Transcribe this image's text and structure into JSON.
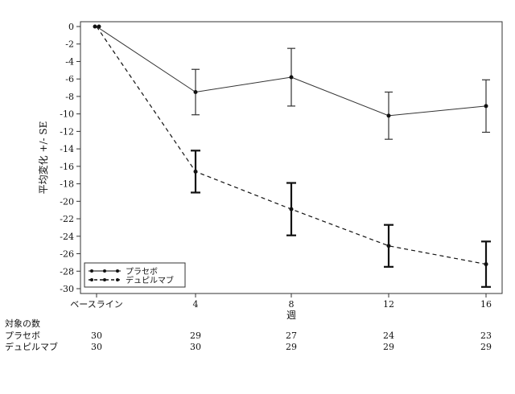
{
  "chart_data": {
    "type": "line",
    "ylabel": "平均変化 +/- SE",
    "xlabel": "週",
    "x": [
      "ベースライン",
      "4",
      "8",
      "12",
      "16"
    ],
    "ylim": [
      -30,
      0
    ],
    "yticks": [
      0,
      -2,
      -4,
      -6,
      -8,
      -10,
      -12,
      -14,
      -16,
      -18,
      -20,
      -22,
      -24,
      -26,
      -28,
      -30
    ],
    "grid": false,
    "legend_position": "bottom-left",
    "series": [
      {
        "name": "プラセボ",
        "line_style": "solid",
        "values": [
          0,
          -7.5,
          -5.8,
          -10.2,
          -9.1
        ],
        "se": [
          0,
          2.6,
          3.3,
          2.7,
          3.0
        ]
      },
      {
        "name": "デュピルマブ",
        "line_style": "dashed",
        "values": [
          0,
          -16.6,
          -20.9,
          -25.1,
          -27.2
        ],
        "se": [
          0,
          2.4,
          3.0,
          2.4,
          2.6
        ]
      }
    ],
    "counts_table": {
      "title": "対象の数",
      "rows": [
        {
          "label": "プラセボ",
          "values": [
            "30",
            "29",
            "27",
            "24",
            "23"
          ]
        },
        {
          "label": "デュピルマブ",
          "values": [
            "30",
            "30",
            "29",
            "29",
            "29"
          ]
        }
      ]
    }
  }
}
